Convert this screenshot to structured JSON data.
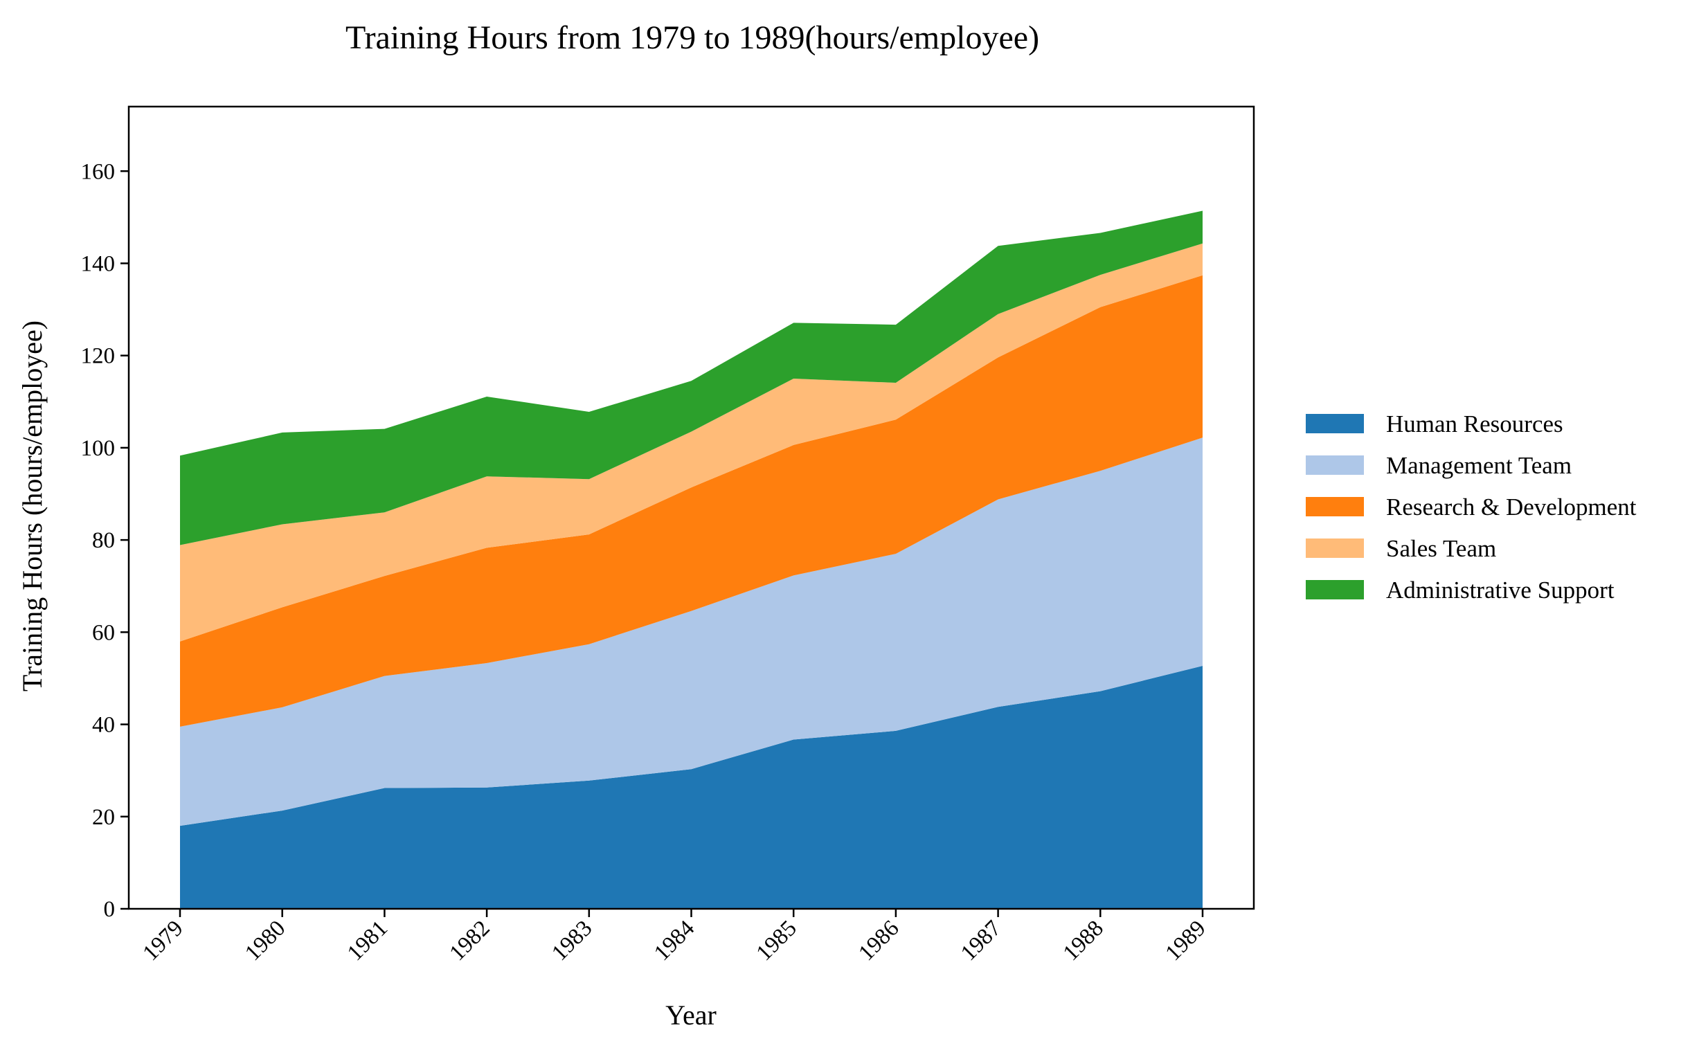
{
  "chart_data": {
    "type": "area",
    "stacked": true,
    "title": "Training Hours from 1979 to 1989(hours/employee)",
    "xlabel": "Year",
    "ylabel": "Training Hours (hours/employee)",
    "categories": [
      "1979",
      "1980",
      "1981",
      "1982",
      "1983",
      "1984",
      "1985",
      "1986",
      "1987",
      "1988",
      "1989"
    ],
    "ylim": [
      0,
      174
    ],
    "yticks": [
      0,
      20,
      40,
      60,
      80,
      100,
      120,
      140,
      160
    ],
    "grid": false,
    "legend_position": "right",
    "series": [
      {
        "name": "Human Resources",
        "color": "#1f77b4",
        "values": [
          18,
          21.3,
          26.2,
          26.3,
          27.8,
          30.3,
          36.7,
          38.6,
          43.8,
          47.2,
          52.7
        ]
      },
      {
        "name": "Management Team",
        "color": "#aec7e8",
        "values": [
          21.5,
          22.4,
          24.3,
          27.0,
          29.6,
          34.3,
          35.6,
          38.4,
          45.0,
          47.8,
          49.5
        ]
      },
      {
        "name": "Research & Development",
        "color": "#ff7f0e",
        "values": [
          18.5,
          21.7,
          21.7,
          25.0,
          23.8,
          26.8,
          28.3,
          29.1,
          30.8,
          35.5,
          35.2
        ]
      },
      {
        "name": "Sales Team",
        "color": "#ffbb78",
        "values": [
          20.9,
          18.0,
          13.8,
          15.5,
          12.0,
          12.1,
          14.4,
          8.0,
          9.4,
          7.0,
          6.9
        ]
      },
      {
        "name": "Administrative Support",
        "color": "#2ca02c",
        "values": [
          19.4,
          19.9,
          18.1,
          17.3,
          14.6,
          11.0,
          12.1,
          12.6,
          14.8,
          9.1,
          7.1
        ]
      }
    ]
  }
}
